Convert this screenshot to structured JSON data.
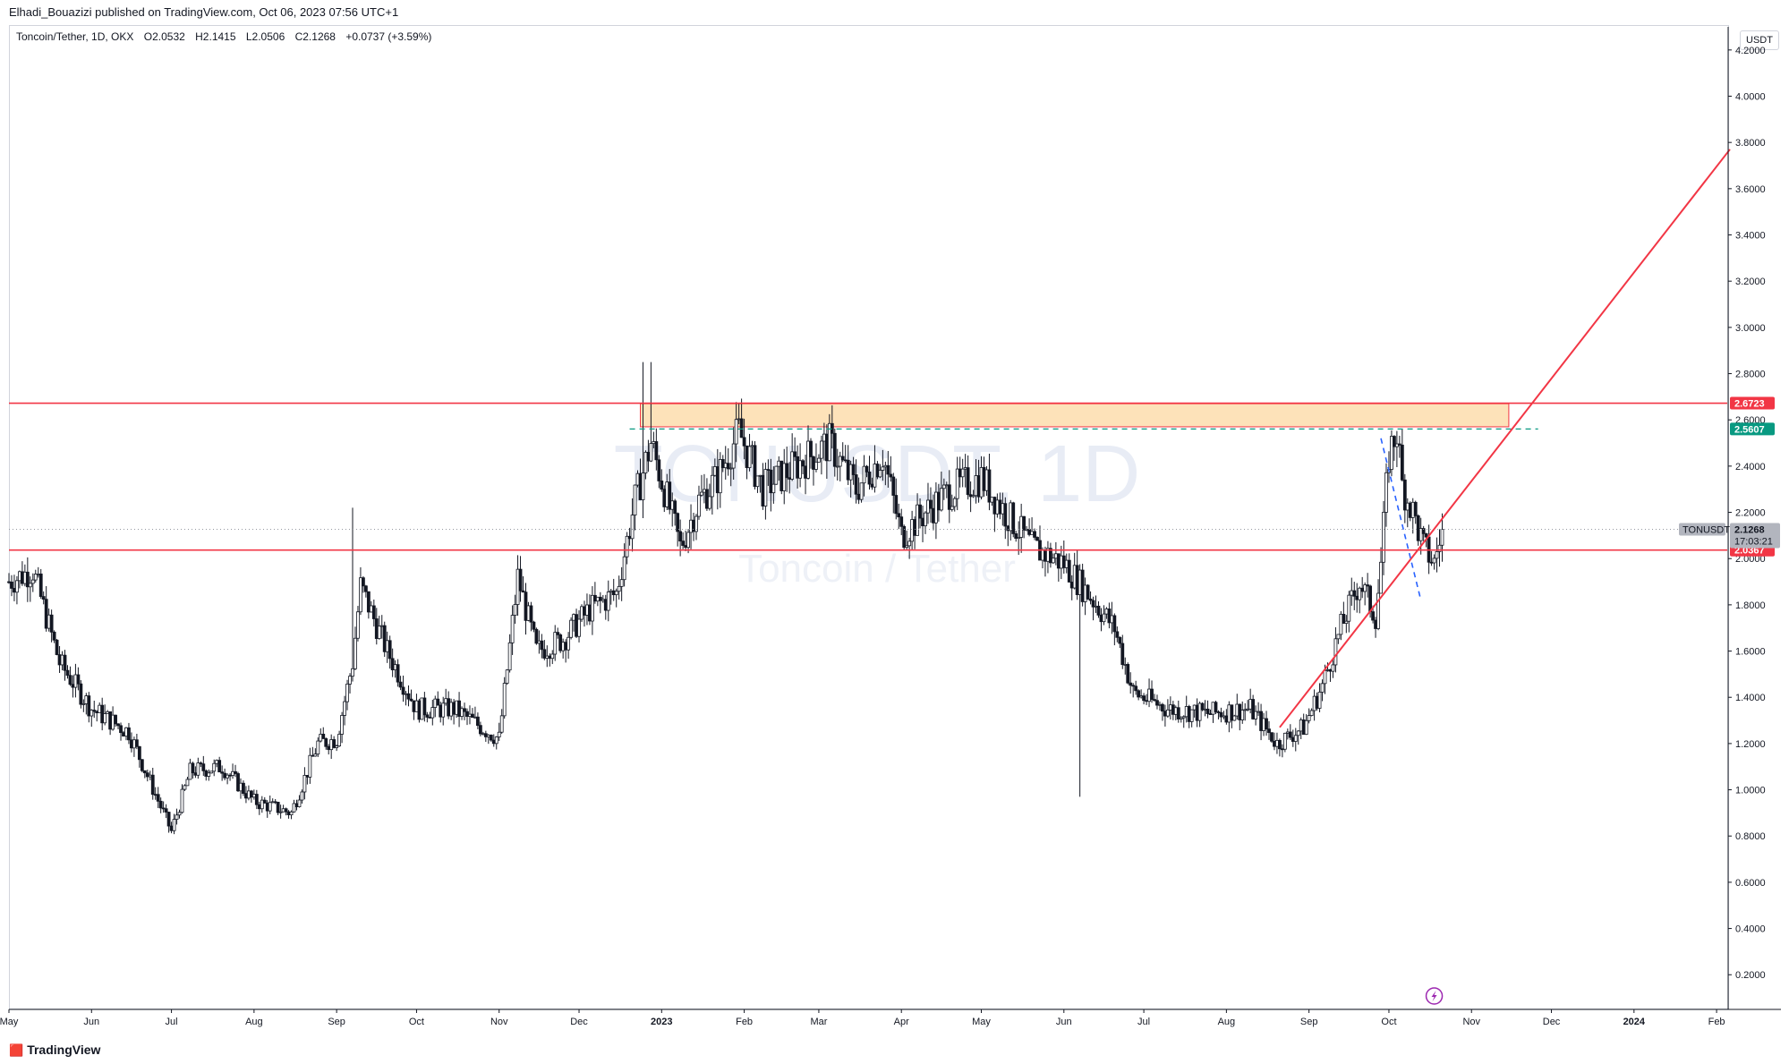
{
  "header": {
    "publisher": "Elhadi_Bouazizi published on TradingView.com, Oct 06, 2023 07:56 UTC+1"
  },
  "legend": {
    "symbol": "Toncoin/Tether, 1D, OKX",
    "open": "O2.0532",
    "high": "H2.1415",
    "low": "L2.0506",
    "close": "C2.1268",
    "change": "+0.0737 (+3.59%)"
  },
  "price_scale": {
    "unit": "USDT"
  },
  "watermark": {
    "symbol": "TONUSDT, 1D",
    "name": "Toncoin / Tether"
  },
  "footer": {
    "brand": "TradingView"
  },
  "tags": {
    "resistance": "2.6723",
    "dashed_level": "2.5607",
    "symbol_label": "TONUSDT",
    "last_price": "2.1268",
    "countdown": "17:03:21",
    "support": "2.0367"
  },
  "colors": {
    "accent_red": "#f23645",
    "teal": "#089981",
    "zone_fill": "#fde2b9",
    "candles": "#131722",
    "dashed_blue": "#2962ff"
  },
  "icons": {
    "alert": "lightning-icon",
    "brand": "tradingview-logo-icon"
  },
  "chart_data": {
    "type": "candlestick",
    "y_ticks": [
      "4.2000",
      "4.0000",
      "3.8000",
      "3.6000",
      "3.4000",
      "3.2000",
      "3.0000",
      "2.8000",
      "2.6000",
      "2.4000",
      "2.2000",
      "2.0000",
      "1.8000",
      "1.6000",
      "1.4000",
      "1.2000",
      "1.0000",
      "0.8000",
      "0.6000",
      "0.4000",
      "0.2000"
    ],
    "ylim": [
      0.05,
      4.3
    ],
    "x_ticks": [
      "May",
      "Jun",
      "Jul",
      "Aug",
      "Sep",
      "Oct",
      "Nov",
      "Dec",
      "2023",
      "Feb",
      "Mar",
      "Apr",
      "May",
      "Jun",
      "Jul",
      "Aug",
      "Sep",
      "Oct",
      "Nov",
      "Dec",
      "2024",
      "Feb"
    ],
    "x_tick_dates": [
      "2022-05-01",
      "2022-06-01",
      "2022-07-01",
      "2022-08-01",
      "2022-09-01",
      "2022-10-01",
      "2022-11-01",
      "2022-12-01",
      "2023-01-01",
      "2023-02-01",
      "2023-03-01",
      "2023-04-01",
      "2023-05-01",
      "2023-06-01",
      "2023-07-01",
      "2023-08-01",
      "2023-09-01",
      "2023-10-01",
      "2023-11-01",
      "2023-12-01",
      "2024-01-01",
      "2024-02-01"
    ],
    "xlim": [
      "2022-05-01",
      "2024-02-05"
    ],
    "price_path": [
      [
        "2022-05-01",
        1.9
      ],
      [
        "2022-05-10",
        1.95
      ],
      [
        "2022-05-20",
        1.55
      ],
      [
        "2022-06-01",
        1.35
      ],
      [
        "2022-06-15",
        1.25
      ],
      [
        "2022-06-25",
        0.98
      ],
      [
        "2022-07-01",
        0.82
      ],
      [
        "2022-07-08",
        1.08
      ],
      [
        "2022-07-20",
        1.1
      ],
      [
        "2022-08-01",
        0.95
      ],
      [
        "2022-08-15",
        0.9
      ],
      [
        "2022-08-25",
        1.2
      ],
      [
        "2022-09-01",
        1.22
      ],
      [
        "2022-09-07",
        1.55
      ],
      [
        "2022-09-10",
        1.88
      ],
      [
        "2022-09-20",
        1.6
      ],
      [
        "2022-10-01",
        1.35
      ],
      [
        "2022-10-15",
        1.35
      ],
      [
        "2022-11-01",
        1.22
      ],
      [
        "2022-11-08",
        1.92
      ],
      [
        "2022-11-15",
        1.6
      ],
      [
        "2022-11-25",
        1.65
      ],
      [
        "2022-12-05",
        1.78
      ],
      [
        "2022-12-15",
        1.85
      ],
      [
        "2022-12-22",
        2.25
      ],
      [
        "2022-12-28",
        2.5
      ],
      [
        "2023-01-02",
        2.3
      ],
      [
        "2023-01-08",
        2.05
      ],
      [
        "2023-01-15",
        2.25
      ],
      [
        "2023-01-22",
        2.35
      ],
      [
        "2023-01-30",
        2.55
      ],
      [
        "2023-02-08",
        2.3
      ],
      [
        "2023-02-20",
        2.4
      ],
      [
        "2023-03-05",
        2.5
      ],
      [
        "2023-03-15",
        2.3
      ],
      [
        "2023-03-25",
        2.45
      ],
      [
        "2023-04-01",
        2.1
      ],
      [
        "2023-04-10",
        2.2
      ],
      [
        "2023-04-20",
        2.3
      ],
      [
        "2023-05-01",
        2.35
      ],
      [
        "2023-05-10",
        2.2
      ],
      [
        "2023-05-20",
        2.05
      ],
      [
        "2023-06-01",
        1.98
      ],
      [
        "2023-06-10",
        1.85
      ],
      [
        "2023-06-20",
        1.7
      ],
      [
        "2023-06-27",
        1.42
      ],
      [
        "2023-07-10",
        1.35
      ],
      [
        "2023-07-25",
        1.33
      ],
      [
        "2023-08-10",
        1.35
      ],
      [
        "2023-08-20",
        1.2
      ],
      [
        "2023-08-30",
        1.27
      ],
      [
        "2023-09-06",
        1.45
      ],
      [
        "2023-09-13",
        1.7
      ],
      [
        "2023-09-20",
        1.9
      ],
      [
        "2023-09-26",
        1.75
      ],
      [
        "2023-09-28",
        1.98
      ],
      [
        "2023-10-01",
        2.45
      ],
      [
        "2023-10-04",
        2.55
      ],
      [
        "2023-10-06",
        2.32
      ],
      [
        "2023-10-10",
        2.2
      ],
      [
        "2023-10-14",
        2.05
      ],
      [
        "2023-10-18",
        1.98
      ],
      [
        "2023-10-21",
        2.13
      ]
    ],
    "last_date": "2023-10-21",
    "close": 2.1268,
    "levels": [
      {
        "kind": "resistance",
        "price": 2.6723,
        "from": "2022-05-01",
        "to": "2024-02-05",
        "color": "#f23645"
      },
      {
        "kind": "support",
        "price": 2.0367,
        "from": "2022-05-01",
        "to": "2024-02-05",
        "color": "#f23645"
      },
      {
        "kind": "dashed",
        "price": 2.5607,
        "from": "2022-12-20",
        "to": "2023-11-26",
        "color": "#089981"
      }
    ],
    "zone": {
      "from": "2022-12-24",
      "to": "2023-11-15",
      "low": 2.57,
      "high": 2.67
    },
    "trendline": [
      [
        "2023-08-21",
        1.27
      ],
      [
        "2024-02-06",
        3.77
      ]
    ],
    "falling_dashed": [
      [
        "2023-09-28",
        2.52
      ],
      [
        "2023-10-13",
        1.82
      ]
    ],
    "spike_highs": [
      [
        "2022-12-25",
        2.85
      ],
      [
        "2022-12-28",
        2.85
      ],
      [
        "2023-06-07",
        0.97
      ],
      [
        "2022-09-07",
        2.22
      ]
    ]
  }
}
